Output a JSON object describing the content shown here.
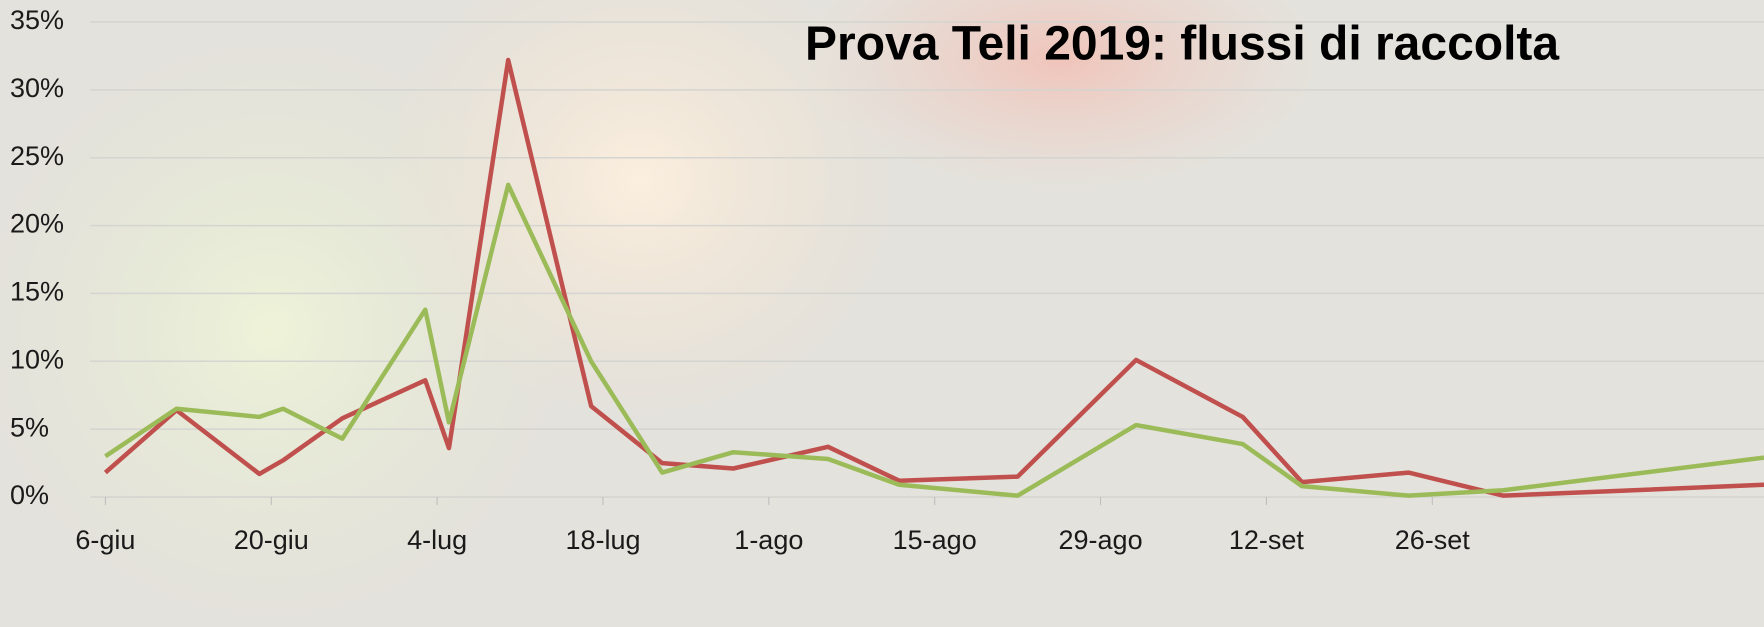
{
  "chart_data": {
    "type": "line",
    "title": "Prova Teli 2019: flussi di raccolta",
    "x": [
      0,
      6,
      13,
      15,
      20,
      27,
      29,
      34,
      41,
      47,
      53,
      61,
      67,
      77,
      87,
      96,
      101,
      110,
      118,
      140
    ],
    "series": [
      {
        "color": "#c0504d",
        "values": [
          1.8,
          6.4,
          1.7,
          2.7,
          5.8,
          8.6,
          3.6,
          32.2,
          6.7,
          2.5,
          2.1,
          3.7,
          1.2,
          1.5,
          10.1,
          5.9,
          1.1,
          1.8,
          0.1,
          0.9
        ]
      },
      {
        "color": "#9bbb59",
        "values": [
          3.0,
          6.5,
          5.9,
          6.5,
          4.3,
          13.8,
          5.5,
          23.0,
          10.0,
          1.8,
          3.3,
          2.8,
          0.9,
          0.1,
          5.3,
          3.9,
          0.8,
          0.1,
          0.5,
          2.9
        ]
      }
    ],
    "xlim": [
      -4,
      140
    ],
    "xticks": [
      {
        "value": 0,
        "label": "6-giu"
      },
      {
        "value": 14,
        "label": "20-giu"
      },
      {
        "value": 28,
        "label": "4-lug"
      },
      {
        "value": 42,
        "label": "18-lug"
      },
      {
        "value": 56,
        "label": "1-ago"
      },
      {
        "value": 70,
        "label": "15-ago"
      },
      {
        "value": 84,
        "label": "29-ago"
      },
      {
        "value": 98,
        "label": "12-set"
      },
      {
        "value": 112,
        "label": "26-set"
      }
    ],
    "ylim": [
      0,
      35
    ],
    "yticks": [
      {
        "value": 0,
        "label": "0%"
      },
      {
        "value": 5,
        "label": "5%"
      },
      {
        "value": 10,
        "label": "10%"
      },
      {
        "value": 15,
        "label": "15%"
      },
      {
        "value": 20,
        "label": "20%"
      },
      {
        "value": 25,
        "label": "25%"
      },
      {
        "value": 30,
        "label": "30%"
      },
      {
        "value": 35,
        "label": "35%"
      }
    ],
    "grid": true
  }
}
